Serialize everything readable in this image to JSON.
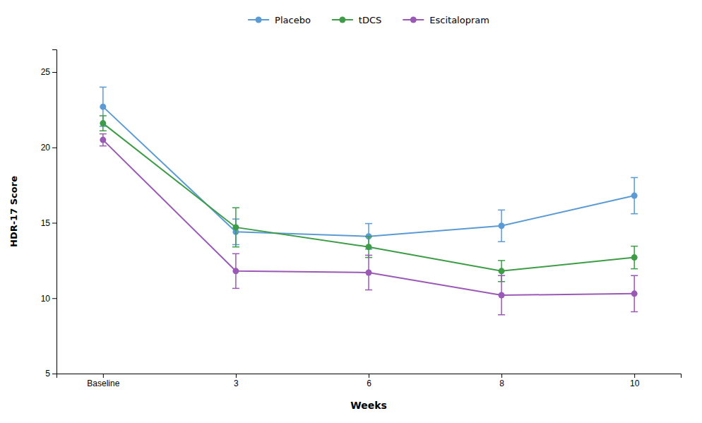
{
  "chart_data": {
    "type": "line",
    "xlabel": "Weeks",
    "ylabel": "HDR-17 Score",
    "categories": [
      "Baseline",
      "3",
      "6",
      "8",
      "10"
    ],
    "series": [
      {
        "name": "Placebo",
        "color": "#5b9bd5",
        "marker": "circle",
        "values": [
          22.7,
          14.4,
          14.1,
          14.8,
          16.8
        ],
        "errors": [
          1.3,
          0.85,
          0.85,
          1.05,
          1.2
        ]
      },
      {
        "name": "tDCS",
        "color": "#3d9c46",
        "marker": "circle",
        "values": [
          21.6,
          14.7,
          13.4,
          11.8,
          12.7
        ],
        "errors": [
          0.5,
          1.3,
          0.7,
          0.7,
          0.75
        ]
      },
      {
        "name": "Escitalopram",
        "color": "#9b59b6",
        "marker": "circle",
        "values": [
          20.5,
          11.8,
          11.7,
          10.2,
          10.3
        ],
        "errors": [
          0.4,
          1.15,
          1.15,
          1.3,
          1.2
        ]
      }
    ],
    "ylim": [
      5,
      26.5
    ],
    "yticks": [
      5,
      10,
      15,
      20,
      25
    ],
    "grid": false,
    "legend": "top"
  }
}
